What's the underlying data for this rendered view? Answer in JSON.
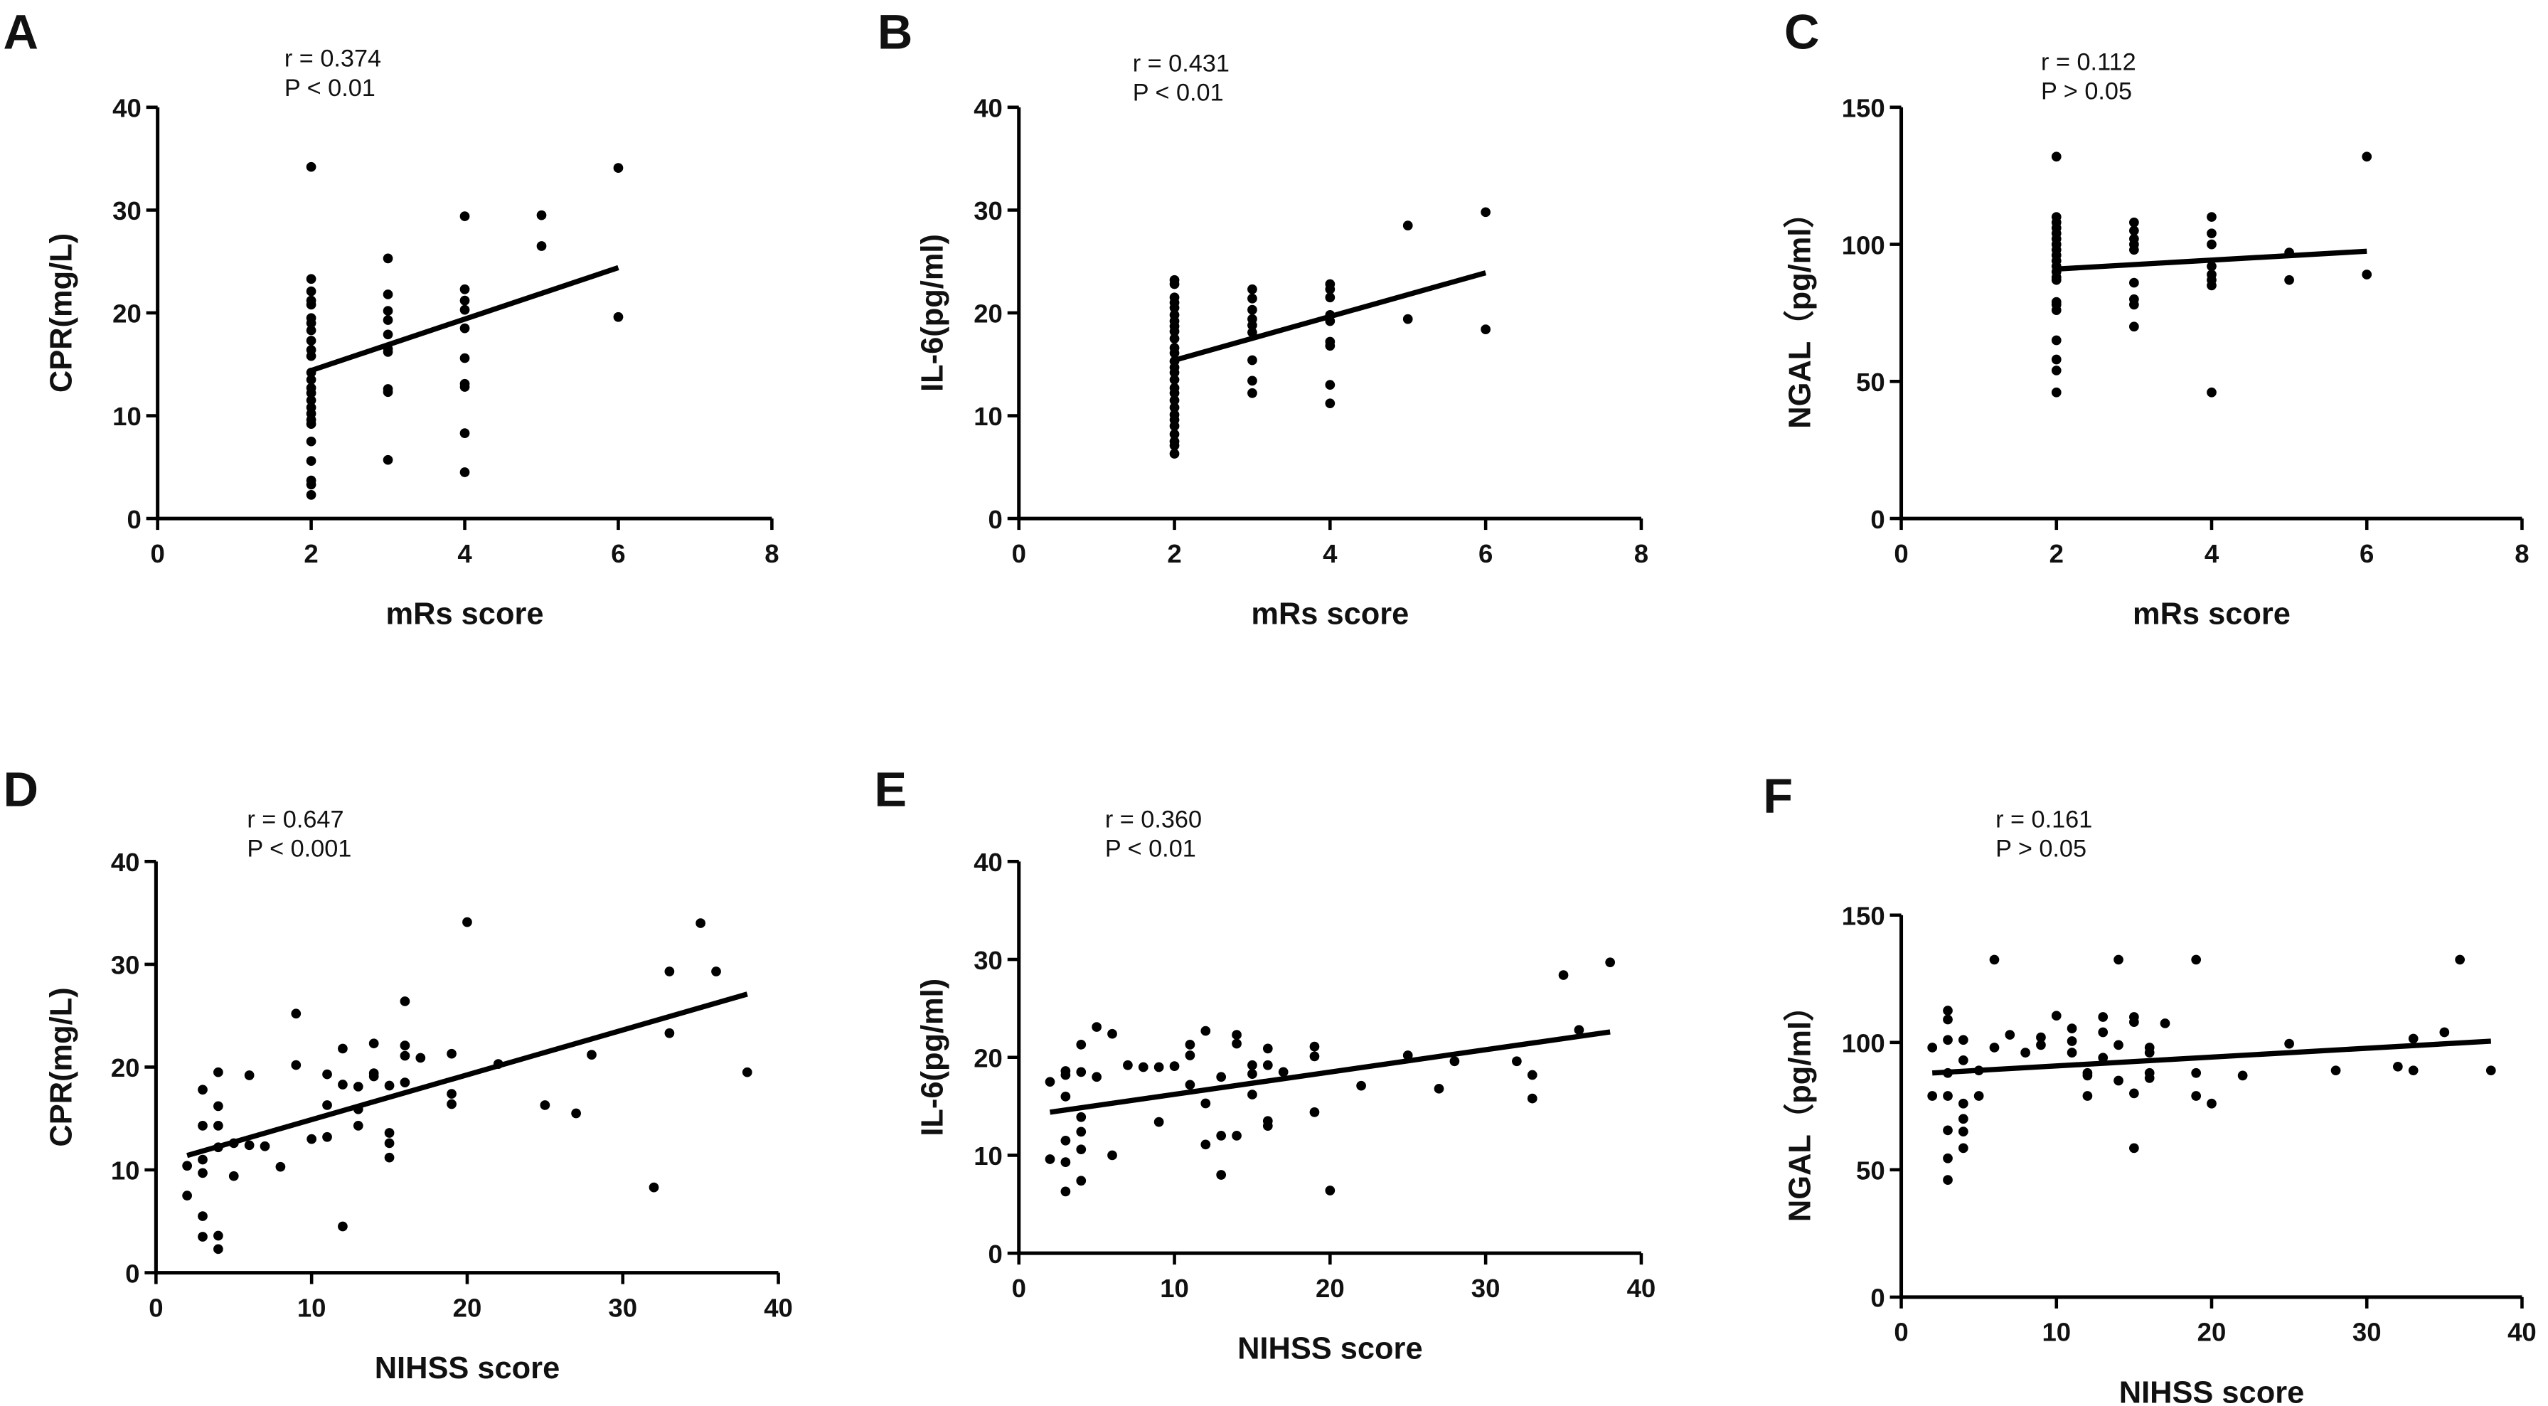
{
  "chart_data": [
    {
      "panel": "A",
      "type": "scatter",
      "xlabel": "mRs score",
      "ylabel": "CPR(mg/L)",
      "xlim": [
        0,
        8
      ],
      "ylim": [
        0,
        40
      ],
      "xticks": [
        0,
        2,
        4,
        6,
        8
      ],
      "yticks": [
        0,
        10,
        20,
        30,
        40
      ],
      "annotation": {
        "r": "r = 0.374",
        "p": "P < 0.01"
      },
      "points": {
        "x": [
          2,
          2,
          2,
          2,
          2,
          2,
          2,
          2,
          2,
          2,
          2,
          2,
          2,
          2,
          2,
          2,
          2,
          2,
          2,
          2,
          2,
          2,
          2,
          2,
          2,
          3,
          3,
          3,
          3,
          3,
          3,
          3,
          3,
          3,
          3,
          4,
          4,
          4,
          4,
          4,
          4,
          4,
          4,
          4,
          4,
          5,
          5,
          6,
          6
        ],
        "y": [
          34.2,
          23.3,
          22.1,
          21.2,
          20.8,
          19.5,
          19.0,
          18.3,
          17.3,
          16.4,
          15.8,
          14.2,
          13.5,
          12.7,
          12.2,
          11.5,
          10.8,
          10.2,
          9.6,
          9.2,
          7.5,
          5.6,
          3.7,
          3.3,
          2.3,
          25.3,
          21.8,
          20.2,
          19.3,
          17.9,
          16.5,
          16.2,
          12.6,
          12.3,
          5.7,
          29.4,
          22.3,
          21.2,
          20.3,
          18.5,
          15.6,
          13.1,
          12.8,
          8.3,
          4.5,
          29.5,
          26.5,
          34.1,
          19.6
        ]
      },
      "fit_line": {
        "x": [
          2,
          6
        ],
        "y": [
          14.4,
          24.4
        ]
      }
    },
    {
      "panel": "B",
      "type": "scatter",
      "xlabel": "mRs score",
      "ylabel": "IL-6(pg/ml)",
      "xlim": [
        0,
        8
      ],
      "ylim": [
        0,
        40
      ],
      "xticks": [
        0,
        2,
        4,
        6,
        8
      ],
      "yticks": [
        0,
        10,
        20,
        30,
        40
      ],
      "annotation": {
        "r": "r = 0.431",
        "p": "P < 0.01"
      },
      "points": {
        "x": [
          2,
          2,
          2,
          2,
          2,
          2,
          2,
          2,
          2,
          2,
          2,
          2,
          2,
          2,
          2,
          2,
          2,
          2,
          2,
          2,
          2,
          2,
          2,
          2,
          2,
          2,
          2,
          3,
          3,
          3,
          3,
          3,
          3,
          3,
          3,
          3,
          4,
          4,
          4,
          4,
          4,
          4,
          4,
          4,
          4,
          5,
          5,
          6,
          6
        ],
        "y": [
          23.2,
          22.8,
          21.5,
          21.0,
          20.5,
          19.8,
          19.2,
          18.7,
          18.2,
          17.5,
          16.6,
          16.1,
          15.3,
          14.7,
          14.2,
          13.5,
          12.7,
          12.2,
          11.5,
          10.8,
          10.1,
          9.6,
          9.0,
          8.2,
          7.5,
          7.1,
          6.3,
          22.3,
          21.4,
          20.3,
          19.4,
          18.8,
          18.1,
          15.4,
          13.4,
          12.2,
          22.8,
          22.3,
          21.5,
          19.8,
          19.2,
          17.2,
          16.8,
          13.0,
          11.2,
          28.5,
          19.4,
          29.8,
          18.4
        ]
      },
      "fit_line": {
        "x": [
          2,
          6
        ],
        "y": [
          15.4,
          23.9
        ]
      }
    },
    {
      "panel": "C",
      "type": "scatter",
      "xlabel": "mRs score",
      "ylabel": "NGAL（pg/ml）",
      "xlim": [
        0,
        8
      ],
      "ylim": [
        0,
        150
      ],
      "xticks": [
        0,
        2,
        4,
        6,
        8
      ],
      "yticks": [
        0,
        50,
        100,
        150
      ],
      "annotation": {
        "r": "r = 0.112",
        "p": "P > 0.05"
      },
      "points": {
        "x": [
          2,
          2,
          2,
          2,
          2,
          2,
          2,
          2,
          2,
          2,
          2,
          2,
          2,
          2,
          2,
          2,
          2,
          2,
          2,
          2,
          2,
          3,
          3,
          3,
          3,
          3,
          3,
          3,
          3,
          3,
          4,
          4,
          4,
          4,
          4,
          4,
          4,
          4,
          5,
          5,
          6,
          6
        ],
        "y": [
          132,
          110,
          108,
          106,
          104,
          102,
          100,
          98,
          96,
          94,
          92,
          90,
          88,
          87,
          79,
          78,
          76,
          65,
          58,
          54,
          46,
          108,
          105,
          102,
          100,
          98,
          86,
          80,
          78,
          70,
          110,
          104,
          100,
          92,
          89,
          87,
          85,
          46,
          97,
          87,
          132,
          89
        ]
      },
      "fit_line": {
        "x": [
          2,
          6
        ],
        "y": [
          91,
          97.5
        ]
      }
    },
    {
      "panel": "D",
      "type": "scatter",
      "xlabel": "NIHSS score",
      "ylabel": "CPR(mg/L)",
      "xlim": [
        0,
        40
      ],
      "ylim": [
        0,
        40
      ],
      "xticks": [
        0,
        10,
        20,
        30,
        40
      ],
      "yticks": [
        0,
        10,
        20,
        30,
        40
      ],
      "annotation": {
        "r": "r = 0.647",
        "p": "P < 0.001"
      },
      "points": {
        "x": [
          2,
          2,
          3,
          3,
          3,
          3,
          3,
          3,
          4,
          4,
          4,
          4,
          4,
          4,
          5,
          5,
          6,
          6,
          7,
          8,
          9,
          9,
          10,
          11,
          11,
          11,
          12,
          12,
          12,
          13,
          13,
          13,
          14,
          14,
          14,
          15,
          15,
          15,
          15,
          16,
          16,
          16,
          16,
          17,
          19,
          19,
          19,
          20,
          22,
          25,
          27,
          28,
          32,
          33,
          33,
          35,
          36,
          38
        ],
        "y": [
          10.4,
          7.5,
          17.8,
          14.3,
          11.0,
          9.7,
          5.5,
          3.5,
          19.5,
          16.2,
          14.3,
          12.2,
          3.6,
          2.3,
          9.4,
          12.6,
          19.2,
          12.4,
          12.3,
          10.3,
          25.2,
          20.2,
          13.0,
          19.3,
          16.3,
          13.2,
          21.8,
          18.3,
          4.5,
          18.1,
          15.9,
          14.3,
          22.3,
          19.4,
          19.1,
          18.2,
          13.6,
          12.6,
          11.2,
          26.4,
          22.1,
          21.1,
          18.5,
          20.9,
          21.3,
          17.4,
          16.4,
          34.1,
          20.3,
          16.3,
          15.5,
          21.2,
          8.3,
          29.3,
          23.3,
          34.0,
          29.3,
          19.5
        ]
      },
      "fit_line": {
        "x": [
          2,
          38
        ],
        "y": [
          11.4,
          27.1
        ]
      }
    },
    {
      "panel": "E",
      "type": "scatter",
      "xlabel": "NIHSS score",
      "ylabel": "IL-6(pg/ml)",
      "xlim": [
        0,
        40
      ],
      "ylim": [
        0,
        40
      ],
      "xticks": [
        0,
        10,
        20,
        30,
        40
      ],
      "yticks": [
        0,
        10,
        20,
        30,
        40
      ],
      "annotation": {
        "r": "r = 0.360",
        "p": "P < 0.01"
      },
      "points": {
        "x": [
          2,
          2,
          3,
          3,
          3,
          3,
          3,
          3,
          4,
          4,
          4,
          4,
          4,
          4,
          5,
          5,
          6,
          6,
          7,
          8,
          9,
          9,
          10,
          11,
          11,
          11,
          12,
          12,
          12,
          13,
          13,
          13,
          14,
          14,
          14,
          15,
          15,
          15,
          16,
          16,
          16,
          16,
          17,
          19,
          19,
          19,
          20,
          22,
          25,
          27,
          28,
          32,
          33,
          33,
          35,
          36,
          38
        ],
        "y": [
          17.5,
          9.6,
          18.6,
          18.2,
          16.0,
          11.5,
          9.3,
          6.3,
          21.3,
          18.5,
          13.9,
          12.4,
          10.6,
          7.4,
          23.1,
          18.0,
          22.4,
          10.0,
          19.2,
          19.0,
          19.0,
          13.4,
          19.1,
          21.3,
          20.2,
          17.2,
          22.7,
          15.3,
          11.1,
          18.0,
          12.0,
          8.0,
          22.3,
          21.4,
          12.0,
          19.2,
          18.3,
          16.2,
          20.9,
          19.2,
          13.5,
          13.0,
          18.5,
          21.1,
          20.1,
          14.4,
          6.4,
          17.1,
          20.2,
          16.8,
          19.6,
          19.6,
          18.2,
          15.8,
          28.4,
          22.8,
          29.7
        ]
      },
      "fit_line": {
        "x": [
          2,
          38
        ],
        "y": [
          14.4,
          22.6
        ]
      }
    },
    {
      "panel": "F",
      "type": "scatter",
      "xlabel": "NIHSS score",
      "ylabel": "NGAL（pg/ml）",
      "xlim": [
        0,
        40
      ],
      "ylim": [
        0,
        150
      ],
      "xticks": [
        0,
        10,
        20,
        30,
        40
      ],
      "yticks": [
        0,
        50,
        100,
        150
      ],
      "annotation": {
        "r": "r = 0.161",
        "p": "P > 0.05"
      },
      "points": {
        "x": [
          2,
          2,
          3,
          3,
          3,
          3,
          3,
          3,
          3,
          3,
          4,
          4,
          4,
          4,
          4,
          4,
          5,
          5,
          6,
          6,
          7,
          8,
          9,
          9,
          10,
          11,
          11,
          11,
          12,
          12,
          12,
          13,
          13,
          13,
          14,
          14,
          14,
          15,
          15,
          15,
          15,
          16,
          16,
          16,
          16,
          17,
          19,
          19,
          19,
          20,
          22,
          25,
          28,
          32,
          33,
          33,
          35,
          36,
          38
        ],
        "y": [
          98,
          79,
          112.5,
          109,
          101,
          88,
          79,
          65.5,
          54.5,
          46,
          101,
          93,
          76,
          70,
          65,
          58.5,
          89,
          79,
          132.5,
          98,
          103,
          96,
          102,
          99,
          110.5,
          105.5,
          100.5,
          96,
          88,
          87,
          79,
          110,
          104,
          94,
          132.5,
          99,
          85,
          110,
          108,
          80,
          58.5,
          98,
          96,
          88,
          86,
          107.5,
          132.5,
          88,
          79,
          76,
          87,
          99.5,
          89,
          90.5,
          101.5,
          89,
          104,
          132.5,
          89
        ]
      },
      "fit_line": {
        "x": [
          2,
          38
        ],
        "y": [
          88,
          100.5
        ]
      }
    }
  ]
}
